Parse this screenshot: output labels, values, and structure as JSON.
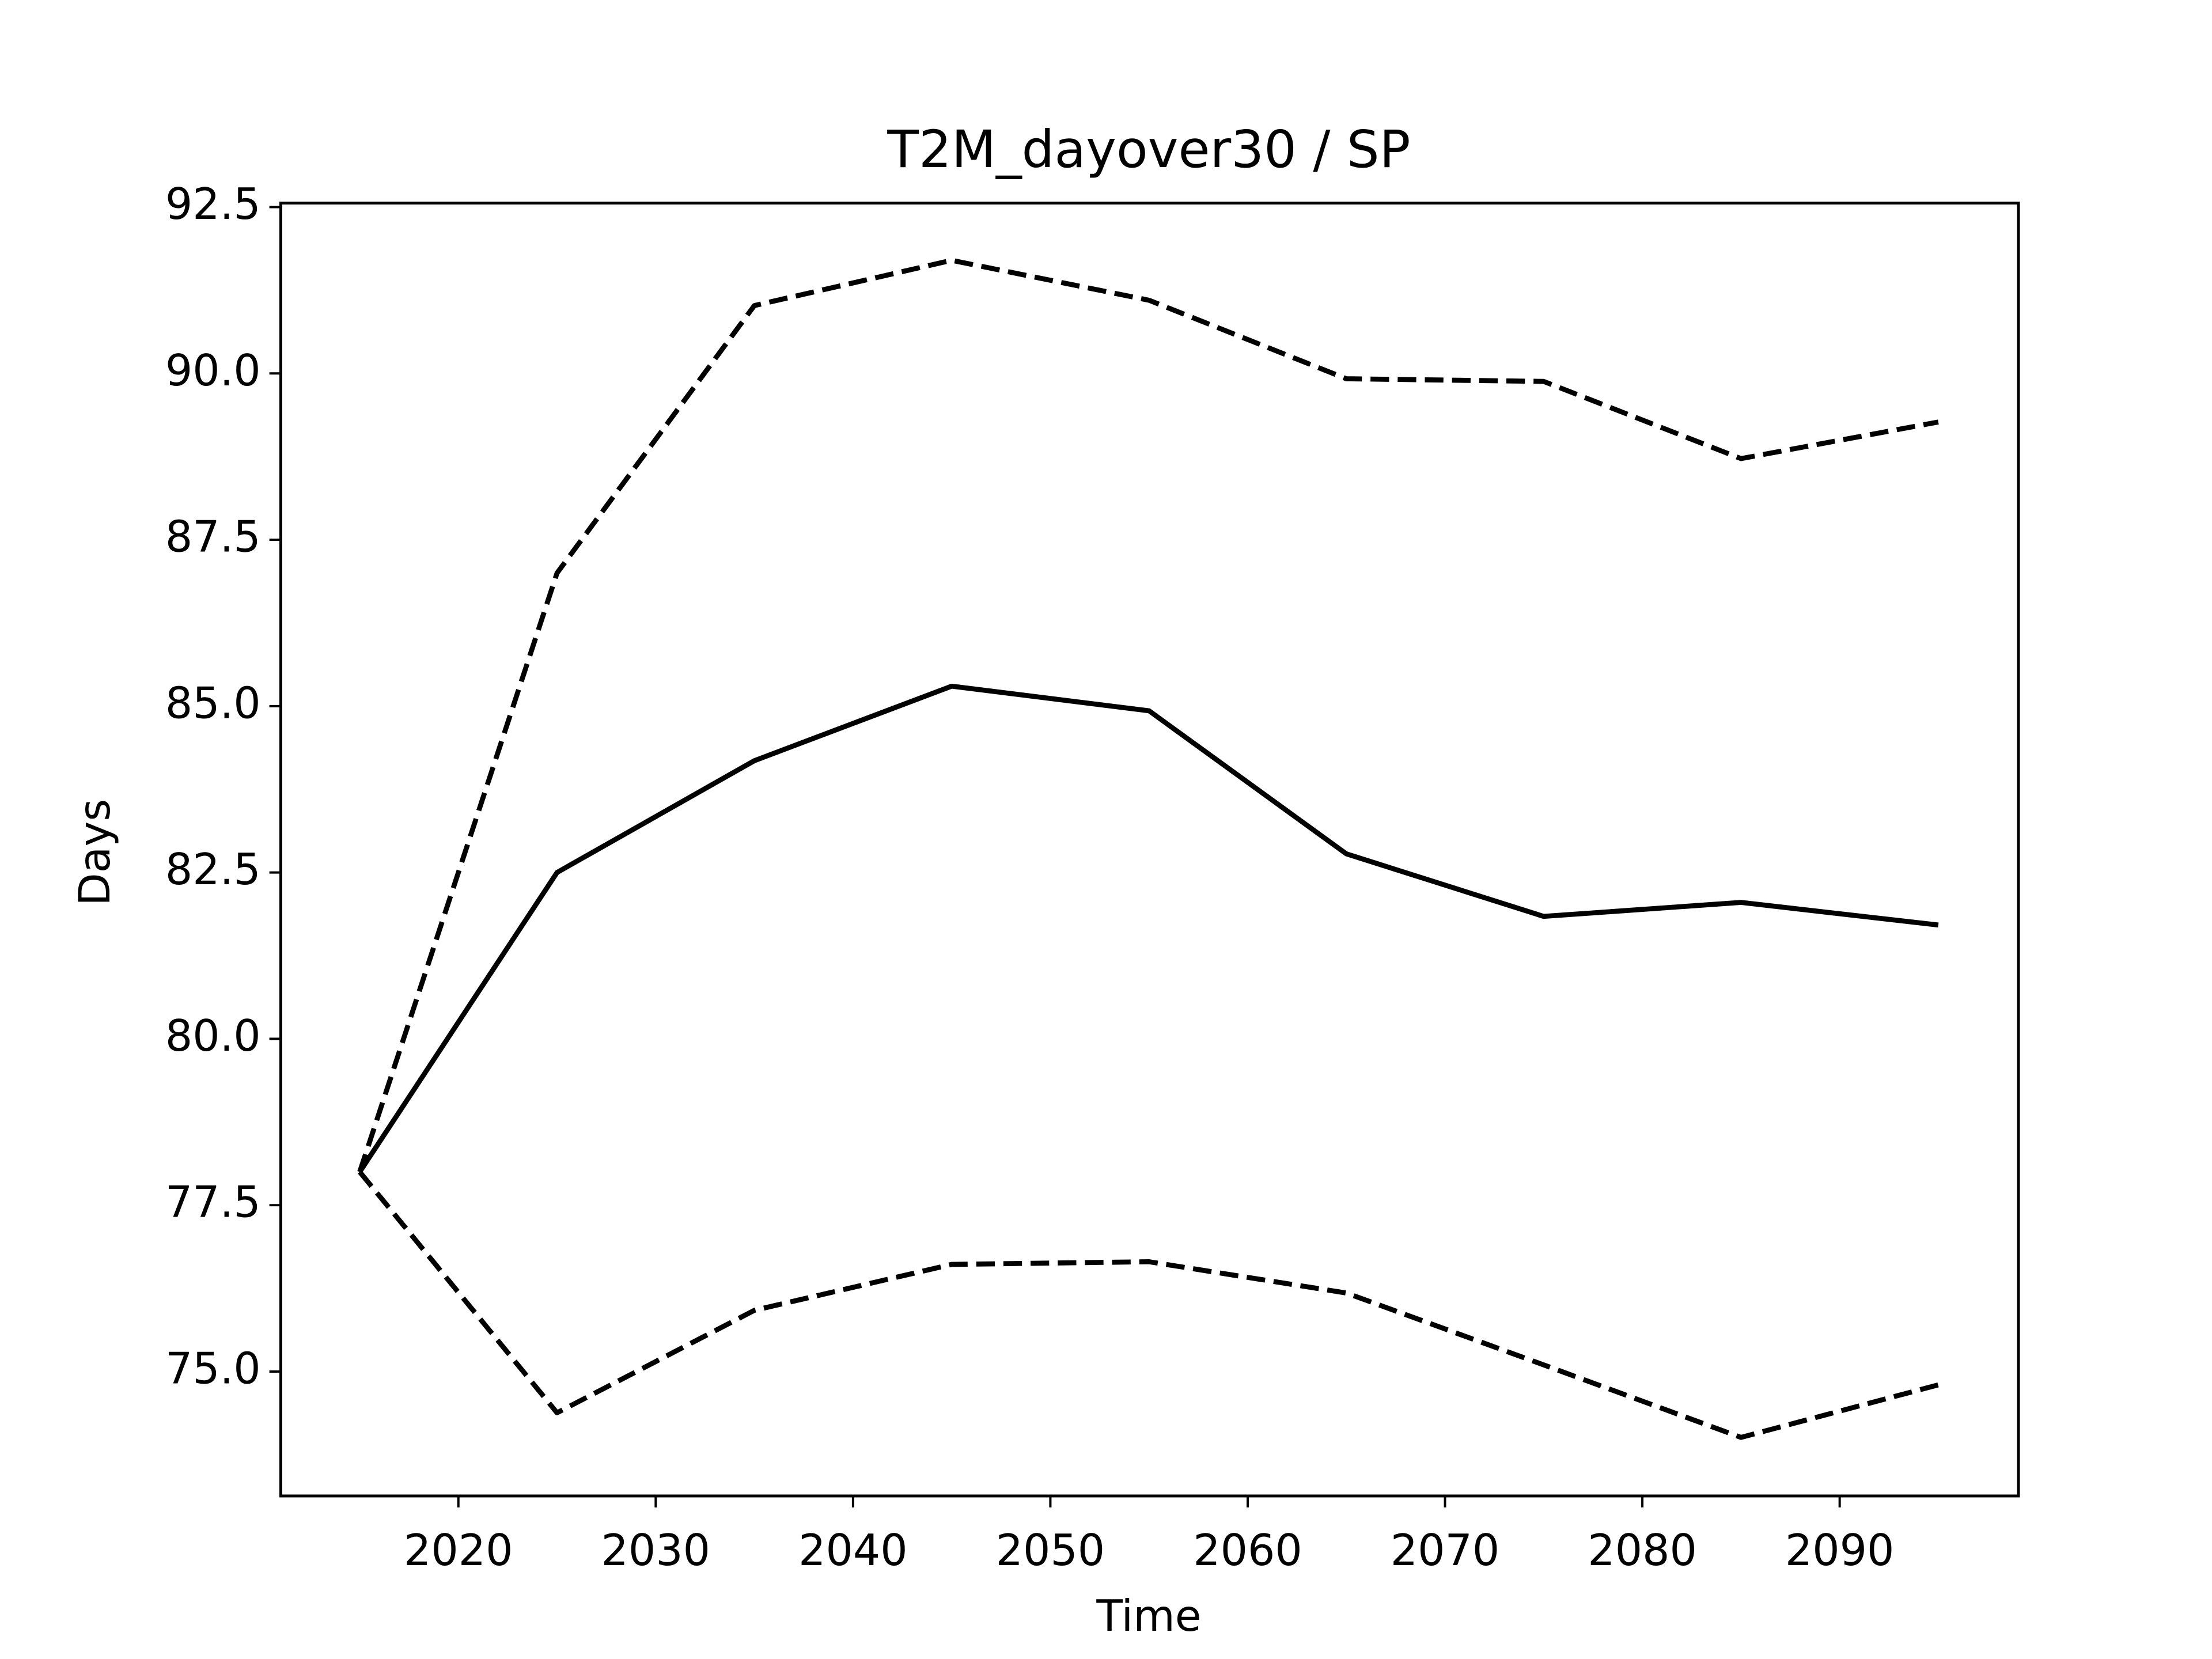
{
  "chart_data": {
    "type": "line",
    "title": "T2M_dayover30 / SP",
    "xlabel": "Time",
    "ylabel": "Days",
    "x": [
      2015,
      2025,
      2035,
      2045,
      2055,
      2065,
      2075,
      2085,
      2095
    ],
    "series": [
      {
        "color": "#000000",
        "style": "solid",
        "values": [
          78.0,
          82.5,
          84.18,
          85.3,
          84.93,
          82.78,
          81.84,
          82.05,
          81.71
        ]
      },
      {
        "color": "#000000",
        "style": "dashed",
        "values": [
          78.0,
          87.0,
          91.02,
          91.7,
          91.1,
          89.92,
          89.88,
          88.72,
          89.27
        ]
      },
      {
        "color": "#000000",
        "style": "dashed",
        "values": [
          78.0,
          74.38,
          75.92,
          76.61,
          76.65,
          76.18,
          75.1,
          74.01,
          74.8
        ]
      }
    ],
    "xlim": [
      2011,
      2099.06
    ],
    "ylim": [
      73.13,
      92.56
    ],
    "xticks": [
      2020,
      2030,
      2040,
      2050,
      2060,
      2070,
      2080,
      2090
    ],
    "yticks": [
      {
        "value": 75,
        "label": "75.0"
      },
      77.5,
      {
        "value": 80,
        "label": "80.0"
      },
      82.5,
      {
        "value": 85,
        "label": "85.0"
      },
      87.5,
      {
        "value": 90,
        "label": "90.0"
      },
      92.5
    ],
    "grid": false
  }
}
